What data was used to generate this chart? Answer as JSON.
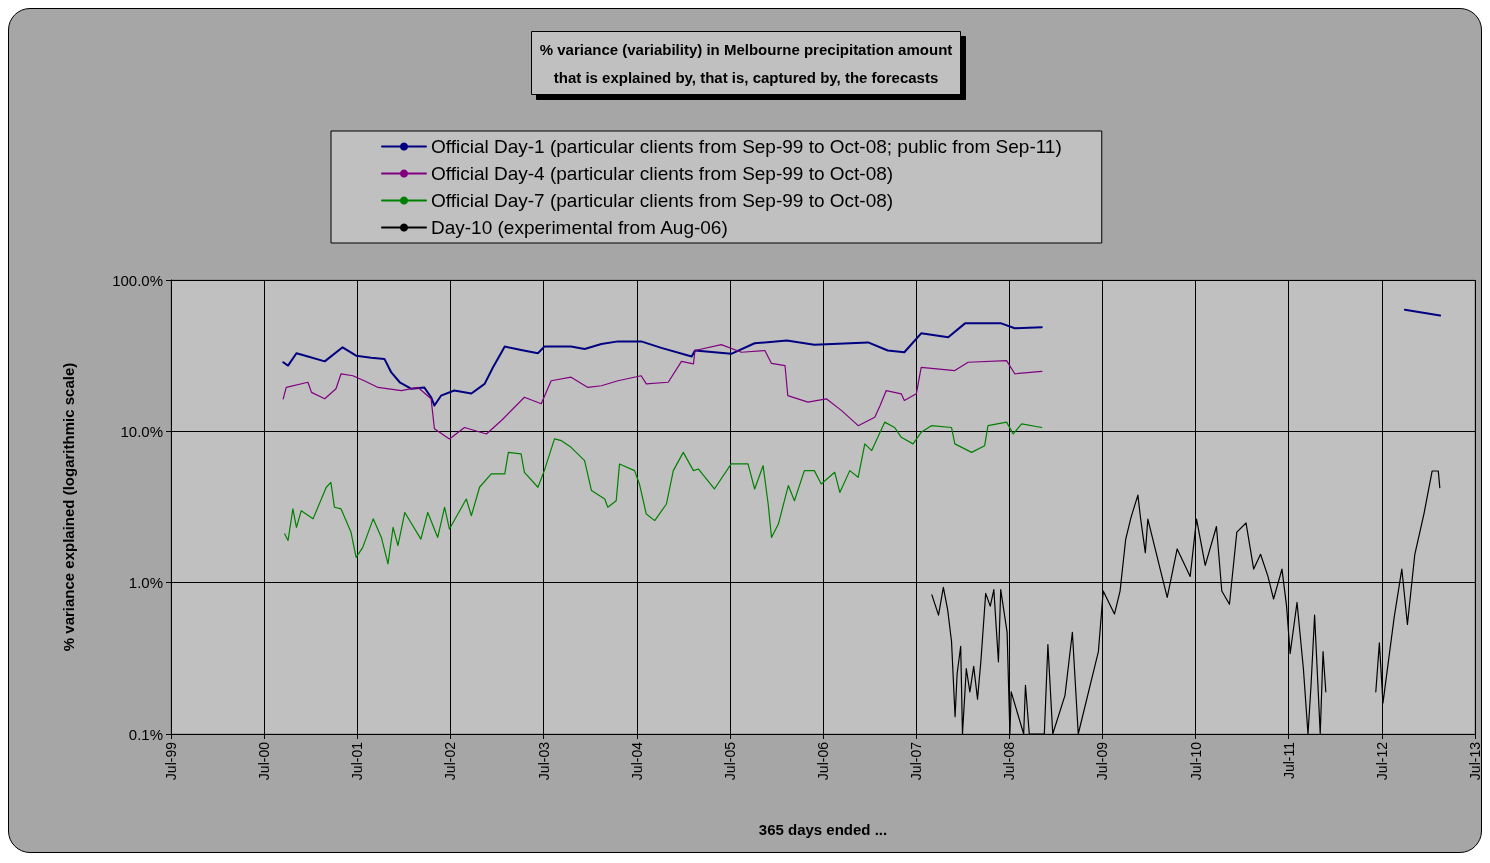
{
  "chart_data": {
    "type": "line",
    "title": "% variance (variability) in Melbourne precipitation amount\nthat is explained by, that is, captured by, the forecasts",
    "xlabel": "365 days ended ...",
    "ylabel": "% variance explained (logarithmic scale)",
    "log": "y",
    "grid": true,
    "legend": "top",
    "marker": "none",
    "line_style": "solid",
    "xlim": [
      "1999-07-01",
      "2013-07-01"
    ],
    "xticks": [
      {
        "value": "1999-07-01",
        "label": "Jul-99"
      },
      {
        "value": "2000-07-01",
        "label": "Jul-00"
      },
      {
        "value": "2001-07-01",
        "label": "Jul-01"
      },
      {
        "value": "2002-07-01",
        "label": "Jul-02"
      },
      {
        "value": "2003-07-01",
        "label": "Jul-03"
      },
      {
        "value": "2004-07-01",
        "label": "Jul-04"
      },
      {
        "value": "2005-07-01",
        "label": "Jul-05"
      },
      {
        "value": "2006-07-01",
        "label": "Jul-06"
      },
      {
        "value": "2007-07-01",
        "label": "Jul-07"
      },
      {
        "value": "2008-07-01",
        "label": "Jul-08"
      },
      {
        "value": "2009-07-01",
        "label": "Jul-09"
      },
      {
        "value": "2010-07-01",
        "label": "Jul-10"
      },
      {
        "value": "2011-07-01",
        "label": "Jul-11"
      },
      {
        "value": "2012-07-01",
        "label": "Jul-12"
      },
      {
        "value": "2013-07-01",
        "label": "Jul-13"
      }
    ],
    "ylim": [
      0.1,
      100
    ],
    "yticks": [
      {
        "value": 0.1,
        "label": "0.1%"
      },
      {
        "value": 1,
        "label": "1.0%"
      },
      {
        "value": 10,
        "label": "10.0%"
      },
      {
        "value": 100,
        "label": "100.0%"
      }
    ],
    "series": [
      {
        "name": "Official Day-1 (particular clients from Sep-99 to Oct-08; public from Sep-11)",
        "color": "#000080",
        "x": [
          "2000-09-13",
          "2000-10-02",
          "2000-11-04",
          "2000-12-19",
          "2001-02-23",
          "2001-05-04",
          "2001-06-26",
          "2001-08-24",
          "2001-10-15",
          "2001-11-11",
          "2001-12-14",
          "2002-01-29",
          "2002-03-20",
          "2002-04-16",
          "2002-04-29",
          "2002-05-25",
          "2002-07-16",
          "2002-09-21",
          "2002-11-12",
          "2002-12-15",
          "2003-01-30",
          "2003-04-04",
          "2003-06-09",
          "2003-07-04",
          "2003-10-17",
          "2003-12-09",
          "2004-02-13",
          "2004-04-18",
          "2004-07-18",
          "2004-10-05",
          "2005-02-01",
          "2005-02-14",
          "2005-07-06",
          "2005-10-06",
          "2006-02-09",
          "2006-05-28",
          "2006-12-25",
          "2007-03-12",
          "2007-05-16",
          "2007-07-21",
          "2007-11-04",
          "2008-01-09",
          "2008-05-30",
          "2008-07-22",
          "2008-11-05",
          "2010-07-01",
          "2012-09-29",
          "2013-02-14"
        ],
        "values": [
          28.6,
          27.2,
          32.8,
          31.2,
          29.0,
          35.9,
          31.6,
          30.6,
          30.1,
          24.5,
          21.1,
          19.1,
          19.5,
          16.8,
          14.8,
          17.2,
          18.6,
          17.8,
          20.6,
          26.5,
          36.3,
          34.5,
          32.8,
          36.3,
          36.3,
          35.0,
          37.8,
          39.3,
          39.3,
          35.6,
          31.2,
          34.2,
          32.5,
          38.2,
          39.8,
          37.4,
          38.7,
          34.2,
          33.3,
          44.4,
          41.8,
          51.7,
          51.7,
          48.0,
          48.7,
          null,
          63.7,
          58.2
        ]
      },
      {
        "name": "Official Day-4 (particular clients from Sep-99 to Oct-08)",
        "color": "#800080",
        "x": [
          "2000-09-13",
          "2000-09-25",
          "2000-12-19",
          "2001-01-02",
          "2001-02-23",
          "2001-04-08",
          "2001-04-28",
          "2001-06-13",
          "2001-07-28",
          "2001-09-20",
          "2001-12-20",
          "2002-02-24",
          "2002-04-16",
          "2002-04-29",
          "2002-06-27",
          "2002-08-25",
          "2002-11-19",
          "2003-01-17",
          "2003-04-17",
          "2003-06-22",
          "2003-07-31",
          "2003-10-17",
          "2003-12-22",
          "2004-02-13",
          "2004-04-18",
          "2004-07-18",
          "2004-08-07",
          "2004-11-01",
          "2004-12-23",
          "2005-02-08",
          "2005-02-14",
          "2005-05-28",
          "2005-08-15",
          "2005-11-15",
          "2005-12-11",
          "2006-02-02",
          "2006-02-13",
          "2006-05-03",
          "2006-07-14",
          "2006-09-12",
          "2006-11-16",
          "2007-01-20",
          "2007-02-10",
          "2007-03-06",
          "2007-05-04",
          "2007-05-16",
          "2007-07-02",
          "2007-07-21",
          "2007-11-30",
          "2008-01-21",
          "2008-06-20",
          "2008-07-22",
          "2008-11-05"
        ],
        "values": [
          16.4,
          19.5,
          21.1,
          18.1,
          16.4,
          19.1,
          24.0,
          23.3,
          21.6,
          19.5,
          18.6,
          19.5,
          16.4,
          10.4,
          8.9,
          10.6,
          9.6,
          11.8,
          16.8,
          15.2,
          21.6,
          22.8,
          19.5,
          20.0,
          21.6,
          23.3,
          20.6,
          21.1,
          29.0,
          27.9,
          34.2,
          37.4,
          33.3,
          34.2,
          28.1,
          27.2,
          17.2,
          15.6,
          16.4,
          13.7,
          10.9,
          12.4,
          14.8,
          18.6,
          17.7,
          16.0,
          17.7,
          26.5,
          25.2,
          28.6,
          29.3,
          24.0,
          24.9
        ]
      },
      {
        "name": "Official Day-7 (particular clients from Sep-99 to Oct-08)",
        "color": "#008000",
        "x": [
          "2000-09-19",
          "2000-10-02",
          "2000-10-21",
          "2000-11-04",
          "2000-11-23",
          "2001-01-08",
          "2001-03-01",
          "2001-03-19",
          "2001-04-02",
          "2001-04-28",
          "2001-06-06",
          "2001-06-26",
          "2001-07-22",
          "2001-09-01",
          "2001-10-03",
          "2001-10-29",
          "2001-11-18",
          "2001-12-07",
          "2002-01-03",
          "2002-03-07",
          "2002-04-03",
          "2002-05-12",
          "2002-06-08",
          "2002-06-27",
          "2002-07-30",
          "2002-09-01",
          "2002-09-21",
          "2002-10-23",
          "2002-12-08",
          "2003-01-30",
          "2003-02-13",
          "2003-04-04",
          "2003-04-17",
          "2003-06-09",
          "2003-07-04",
          "2003-08-13",
          "2003-09-09",
          "2003-10-17",
          "2003-12-09",
          "2004-01-05",
          "2004-02-26",
          "2004-03-09",
          "2004-04-11",
          "2004-04-24",
          "2004-06-22",
          "2004-07-11",
          "2004-08-07",
          "2004-09-09",
          "2004-10-25",
          "2004-11-21",
          "2004-12-30",
          "2005-02-08",
          "2005-02-27",
          "2005-05-01",
          "2005-07-06",
          "2005-09-10",
          "2005-10-06",
          "2005-11-08",
          "2005-11-28",
          "2005-12-11",
          "2006-01-07",
          "2006-02-15",
          "2006-03-11",
          "2006-04-19",
          "2006-05-28",
          "2006-06-24",
          "2006-08-16",
          "2006-09-05",
          "2006-10-14",
          "2006-11-16",
          "2006-12-12",
          "2007-01-08",
          "2007-02-28",
          "2007-04-08",
          "2007-05-04",
          "2007-06-19",
          "2007-07-21",
          "2007-08-30",
          "2007-11-17",
          "2007-11-30",
          "2008-02-04",
          "2008-03-26",
          "2008-04-08",
          "2008-06-20",
          "2008-07-16",
          "2008-08-18",
          "2008-11-05"
        ],
        "values": [
          2.1,
          1.9,
          3.07,
          2.32,
          2.99,
          2.64,
          4.27,
          4.6,
          3.15,
          3.07,
          2.15,
          1.47,
          1.71,
          2.64,
          1.99,
          1.33,
          2.32,
          1.76,
          2.91,
          1.94,
          2.91,
          1.99,
          3.15,
          2.26,
          2.84,
          3.57,
          2.77,
          4.27,
          5.23,
          5.23,
          7.26,
          7.09,
          5.36,
          4.27,
          5.5,
          8.91,
          8.68,
          7.84,
          6.4,
          4.06,
          3.57,
          3.15,
          3.48,
          6.09,
          5.5,
          4.49,
          2.84,
          2.57,
          3.31,
          5.5,
          7.26,
          5.5,
          5.64,
          4.16,
          6.09,
          6.09,
          4.16,
          5.93,
          3.31,
          1.99,
          2.44,
          4.38,
          3.48,
          5.5,
          5.5,
          4.49,
          5.36,
          3.95,
          5.5,
          4.97,
          8.26,
          7.46,
          11.5,
          10.6,
          9.13,
          8.26,
          9.85,
          10.9,
          10.6,
          8.26,
          7.26,
          8.04,
          10.9,
          11.5,
          9.61,
          11.2,
          10.6
        ]
      },
      {
        "name": "Day-10 (experimental from Aug-06)",
        "color": "#000000",
        "x": [
          "2007-09-01",
          "2007-09-27",
          "2007-10-16",
          "2007-11-02",
          "2007-11-17",
          "2007-12-01",
          "2007-12-09",
          "2007-12-23",
          "2007-12-30",
          "2008-01-14",
          "2008-01-28",
          "2008-02-12",
          "2008-02-27",
          "2008-03-11",
          "2008-03-30",
          "2008-04-17",
          "2008-05-01",
          "2008-05-19",
          "2008-05-28",
          "2008-06-22",
          "2008-07-03",
          "2008-07-08",
          "2008-08-26",
          "2008-09-02",
          "2008-09-17",
          "2008-11-15",
          "2008-11-29",
          "2008-12-18",
          "2009-02-04",
          "2009-03-05",
          "2009-03-28",
          "2009-06-15",
          "2009-07-04",
          "2009-08-17",
          "2009-09-08",
          "2009-09-30",
          "2009-10-21",
          "2009-11-17",
          "2009-11-27",
          "2009-12-16",
          "2009-12-26",
          "2010-02-16",
          "2010-03-12",
          "2010-04-20",
          "2010-06-10",
          "2010-07-05",
          "2010-08-08",
          "2010-09-21",
          "2010-10-12",
          "2010-11-11",
          "2010-12-10",
          "2011-01-15",
          "2011-02-14",
          "2011-03-13",
          "2011-04-11",
          "2011-05-03",
          "2011-06-05",
          "2011-06-23",
          "2011-07-07",
          "2011-08-03",
          "2011-08-28",
          "2011-09-15",
          "2011-09-27",
          "2011-10-11",
          "2011-11-02",
          "2011-11-13",
          "2011-11-24",
          "2012-01-01",
          "2012-06-07",
          "2012-06-21",
          "2012-07-05",
          "2012-08-18",
          "2012-09-17",
          "2012-10-09",
          "2012-11-07",
          "2012-12-13",
          "2013-01-14",
          "2013-02-07",
          "2013-02-13"
        ],
        "values": [
          0.83,
          0.61,
          0.93,
          0.66,
          0.41,
          0.13,
          0.25,
          0.38,
          0.1,
          0.27,
          0.19,
          0.28,
          0.17,
          0.3,
          0.85,
          0.7,
          0.9,
          0.3,
          0.9,
          0.47,
          0.1,
          0.19,
          0.1,
          0.21,
          0.1,
          0.1,
          0.39,
          0.1,
          0.18,
          0.47,
          0.1,
          0.35,
          0.88,
          0.62,
          0.88,
          1.93,
          2.7,
          3.79,
          2.7,
          1.58,
          2.63,
          1.16,
          0.8,
          1.67,
          1.1,
          2.63,
          1.3,
          2.35,
          0.88,
          0.72,
          2.16,
          2.48,
          1.23,
          1.54,
          1.1,
          0.78,
          1.23,
          0.7,
          0.34,
          0.74,
          0.27,
          0.1,
          0.21,
          0.61,
          0.1,
          0.35,
          0.19,
          null,
          0.19,
          0.4,
          0.16,
          0.59,
          1.23,
          0.53,
          1.54,
          2.86,
          5.47,
          5.47,
          4.25
        ]
      }
    ]
  }
}
